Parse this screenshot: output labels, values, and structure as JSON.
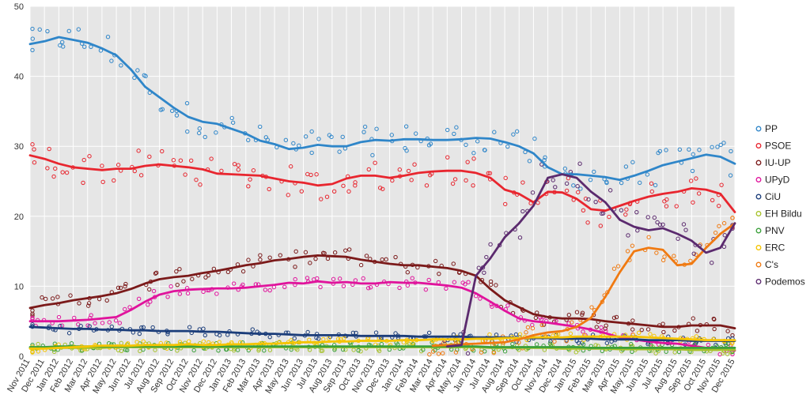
{
  "chart_data": {
    "type": "line",
    "title": "",
    "xlabel": "",
    "ylabel": "",
    "ylim": [
      0,
      50
    ],
    "yticks": [
      0,
      10,
      20,
      30,
      40,
      50
    ],
    "grid": true,
    "legend_position": "right",
    "x_labels": [
      "Nov 2011",
      "Dec 2011",
      "Jan 2012",
      "Feb 2012",
      "Mar 2012",
      "Apr 2012",
      "May 2012",
      "Jun 2012",
      "Jul 2012",
      "Aug 2012",
      "Sep 2012",
      "Oct 2012",
      "Nov 2012",
      "Dec 2012",
      "Jan 2013",
      "Feb 2013",
      "Mar 2013",
      "Apr 2013",
      "May 2013",
      "Jun 2013",
      "Jul 2013",
      "Aug 2013",
      "Sep 2013",
      "Oct 2013",
      "Nov 2013",
      "Dec 2013",
      "Jan 2014",
      "Feb 2014",
      "Mar 2014",
      "Apr 2014",
      "May 2014",
      "Jun 2014",
      "Jul 2014",
      "Aug 2014",
      "Sep 2014",
      "Oct 2014",
      "Nov 2014",
      "Dec 2014",
      "Jan 2015",
      "Feb 2015",
      "Mar 2015",
      "Apr 2015",
      "May 2015",
      "Jun 2015",
      "Jul 2015",
      "Aug 2015",
      "Sep 2015",
      "Oct 2015",
      "Nov 2015",
      "Dec 2015"
    ],
    "series": [
      {
        "name": "PP",
        "color": "#2f86c9",
        "values": [
          44.6,
          45.0,
          45.6,
          45.2,
          44.8,
          44.0,
          43.0,
          41.0,
          38.5,
          37.0,
          35.5,
          34.2,
          33.5,
          33.2,
          32.5,
          31.8,
          30.8,
          30.3,
          29.6,
          29.8,
          30.2,
          30.0,
          30.0,
          30.6,
          30.9,
          30.8,
          31.0,
          31.0,
          30.9,
          30.9,
          31.0,
          31.2,
          31.1,
          30.6,
          30.0,
          29.0,
          27.0,
          26.0,
          26.0,
          25.8,
          25.6,
          25.2,
          25.8,
          26.5,
          27.3,
          27.8,
          28.3,
          28.8,
          28.5,
          27.5
        ]
      },
      {
        "name": "PSOE",
        "color": "#e8262f",
        "values": [
          28.7,
          28.2,
          27.5,
          27.0,
          26.8,
          26.6,
          26.8,
          26.8,
          27.2,
          27.4,
          27.2,
          27.0,
          26.7,
          26.1,
          26.0,
          25.9,
          25.8,
          25.4,
          25.0,
          24.8,
          24.4,
          24.6,
          25.4,
          25.8,
          25.8,
          25.5,
          25.8,
          26.2,
          26.4,
          26.5,
          26.5,
          26.2,
          25.5,
          23.8,
          23.2,
          22.0,
          23.5,
          23.4,
          22.5,
          21.0,
          20.8,
          21.5,
          22.2,
          22.8,
          23.2,
          23.5,
          24.0,
          23.8,
          23.2,
          20.6
        ]
      },
      {
        "name": "IU-UP",
        "color": "#7b1a1a",
        "values": [
          6.9,
          7.3,
          7.6,
          8.0,
          8.3,
          8.6,
          9.0,
          9.6,
          10.4,
          11.0,
          11.3,
          11.5,
          11.9,
          12.2,
          12.6,
          13.0,
          13.3,
          13.7,
          13.9,
          14.2,
          14.4,
          14.3,
          14.2,
          13.8,
          13.5,
          13.2,
          13.0,
          13.0,
          12.8,
          12.6,
          12.2,
          11.5,
          9.6,
          8.0,
          7.0,
          6.0,
          5.6,
          5.4,
          5.4,
          5.3,
          5.0,
          4.8,
          4.6,
          4.4,
          4.2,
          4.2,
          4.4,
          4.4,
          4.4,
          4.0
        ]
      },
      {
        "name": "UPyD",
        "color": "#e0139c",
        "values": [
          5.0,
          5.0,
          5.0,
          5.1,
          5.2,
          5.4,
          5.6,
          6.6,
          7.8,
          8.8,
          9.3,
          9.5,
          9.6,
          9.7,
          9.7,
          9.8,
          10.0,
          10.2,
          10.5,
          10.4,
          10.7,
          10.5,
          10.6,
          10.4,
          10.4,
          10.6,
          10.5,
          10.5,
          10.3,
          10.1,
          9.8,
          9.0,
          7.8,
          6.5,
          5.4,
          5.0,
          4.8,
          4.5,
          4.2,
          3.8,
          3.3,
          2.7,
          2.4,
          2.1,
          1.9,
          1.8,
          1.5,
          1.2,
          1.0,
          0.8
        ]
      },
      {
        "name": "CiU",
        "color": "#1b3d7a",
        "values": [
          4.2,
          4.1,
          4.0,
          3.9,
          3.9,
          3.8,
          3.8,
          3.7,
          3.7,
          3.6,
          3.6,
          3.6,
          3.5,
          3.5,
          3.4,
          3.3,
          3.2,
          3.2,
          3.1,
          3.0,
          3.0,
          3.0,
          3.0,
          2.9,
          2.9,
          2.9,
          2.9,
          2.8,
          2.8,
          2.8,
          2.8,
          2.7,
          2.7,
          2.7,
          2.6,
          2.6,
          2.6,
          2.5,
          2.5,
          2.5,
          2.4,
          2.4,
          2.4,
          2.3,
          2.3,
          2.3,
          2.2,
          2.2,
          2.2,
          2.2
        ]
      },
      {
        "name": "EH Bildu",
        "color": "#a7c22a",
        "values": [
          1.2,
          1.2,
          1.2,
          1.2,
          1.2,
          1.2,
          1.3,
          1.3,
          1.3,
          1.3,
          1.3,
          1.3,
          1.3,
          1.3,
          1.3,
          1.3,
          1.3,
          1.3,
          1.3,
          1.3,
          1.3,
          1.3,
          1.3,
          1.3,
          1.3,
          1.3,
          1.3,
          1.3,
          1.3,
          1.3,
          1.3,
          1.3,
          1.2,
          1.2,
          1.2,
          1.2,
          1.2,
          1.1,
          1.1,
          1.1,
          1.1,
          1.0,
          1.0,
          1.0,
          1.0,
          1.0,
          0.9,
          0.9,
          0.9,
          0.9
        ]
      },
      {
        "name": "PNV",
        "color": "#3aa03a",
        "values": [
          1.3,
          1.3,
          1.4,
          1.4,
          1.4,
          1.4,
          1.4,
          1.4,
          1.4,
          1.4,
          1.4,
          1.4,
          1.4,
          1.4,
          1.4,
          1.4,
          1.4,
          1.4,
          1.4,
          1.4,
          1.4,
          1.4,
          1.4,
          1.4,
          1.4,
          1.4,
          1.4,
          1.4,
          1.4,
          1.4,
          1.4,
          1.4,
          1.3,
          1.3,
          1.3,
          1.3,
          1.3,
          1.3,
          1.3,
          1.2,
          1.2,
          1.2,
          1.2,
          1.2,
          1.2,
          1.2,
          1.2,
          1.2,
          1.2,
          1.2
        ]
      },
      {
        "name": "ERC",
        "color": "#f5c400",
        "values": [
          1.1,
          1.1,
          1.2,
          1.3,
          1.4,
          1.5,
          1.5,
          1.5,
          1.6,
          1.6,
          1.6,
          1.7,
          1.6,
          1.6,
          1.7,
          1.7,
          1.8,
          1.8,
          1.9,
          2.0,
          2.0,
          2.1,
          2.1,
          2.2,
          2.2,
          2.2,
          2.3,
          2.3,
          2.4,
          2.4,
          2.4,
          2.5,
          2.5,
          2.6,
          2.6,
          2.7,
          2.7,
          2.7,
          2.8,
          2.8,
          2.8,
          2.8,
          2.8,
          2.7,
          2.6,
          2.5,
          2.4,
          2.3,
          2.3,
          2.3
        ]
      },
      {
        "name": "C's",
        "color": "#f07a12",
        "values": [
          null,
          null,
          null,
          null,
          null,
          null,
          null,
          null,
          null,
          null,
          null,
          null,
          null,
          null,
          null,
          null,
          null,
          null,
          null,
          null,
          null,
          null,
          null,
          null,
          null,
          null,
          null,
          null,
          1.5,
          1.6,
          1.7,
          1.8,
          1.9,
          2.0,
          2.4,
          3.0,
          3.4,
          3.6,
          4.2,
          5.5,
          8.5,
          12.0,
          15.0,
          15.5,
          15.2,
          13.0,
          13.2,
          15.5,
          17.5,
          19.0
        ]
      },
      {
        "name": "Podemos",
        "color": "#5b2a6e",
        "values": [
          null,
          null,
          null,
          null,
          null,
          null,
          null,
          null,
          null,
          null,
          null,
          null,
          null,
          null,
          null,
          null,
          null,
          null,
          null,
          null,
          null,
          null,
          null,
          null,
          null,
          null,
          null,
          null,
          null,
          1.4,
          1.6,
          11.5,
          14.0,
          17.0,
          19.0,
          21.5,
          25.5,
          26.0,
          25.5,
          23.5,
          22.0,
          19.5,
          18.5,
          18.0,
          18.3,
          17.5,
          16.5,
          14.8,
          15.5,
          19.0
        ]
      }
    ]
  }
}
